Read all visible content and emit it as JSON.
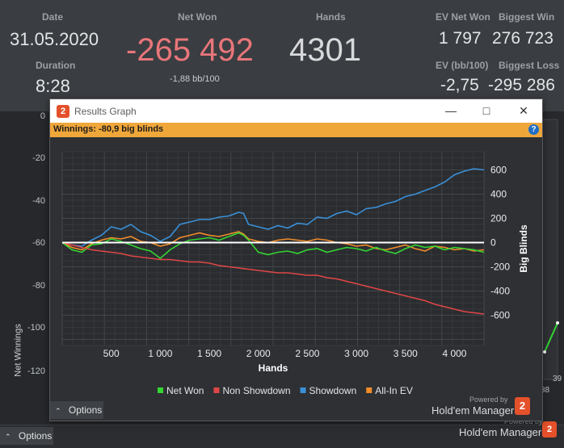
{
  "stats": {
    "date_label": "Date",
    "date_value": "31.05.2020",
    "duration_label": "Duration",
    "duration_value": "8:28",
    "net_won_label": "Net Won",
    "net_won_value": "-265 492",
    "net_won_bb": "-1,88 bb/100",
    "hands_label": "Hands",
    "hands_value": "4301",
    "ev_net_won_label": "EV Net Won",
    "ev_net_won_value": "1 797",
    "ev_bb_label": "EV (bb/100)",
    "ev_bb_value": "-2,75",
    "biggest_win_label": "Biggest Win",
    "biggest_win_value": "276 723",
    "biggest_loss_label": "Biggest Loss",
    "biggest_loss_value": "-295 286"
  },
  "background_chart": {
    "ylabel": "Net Winnings",
    "yticks": [
      "0",
      "-20",
      "-40",
      "-60",
      "-80",
      "-100",
      "-120"
    ],
    "xticks": [
      "38",
      "39"
    ]
  },
  "bottom": {
    "options_label": "Options",
    "powered_by": "Powered by",
    "brand": "Hold'em Manager",
    "logo": "2"
  },
  "window": {
    "title": "Results Graph",
    "logo": "2",
    "banner": "Winnings: -80,9 big blinds",
    "help": "?",
    "options_label": "Options",
    "powered_by": "Powered by",
    "brand": "Hold'em Manager",
    "legend": [
      {
        "name": "Net Won",
        "color": "#33d633"
      },
      {
        "name": "Non Showdown",
        "color": "#e04646"
      },
      {
        "name": "Showdown",
        "color": "#3a90d8"
      },
      {
        "name": "All-In EV",
        "color": "#f08c2a"
      }
    ]
  },
  "chart_data": {
    "type": "line",
    "xlabel": "Hands",
    "ylabel_right": "Big Blinds",
    "xlim": [
      0,
      4301
    ],
    "ylim": [
      -850,
      750
    ],
    "xticks": [
      500,
      1000,
      1500,
      2000,
      2500,
      3000,
      3500,
      4000
    ],
    "xtick_labels": [
      "500",
      "1 000",
      "1 500",
      "2 000",
      "2 500",
      "3 000",
      "3 500",
      "4 000"
    ],
    "yticks": [
      600,
      400,
      200,
      0,
      -200,
      -400,
      -600
    ],
    "ytick_labels": [
      "600",
      "400",
      "200",
      "0",
      "-200",
      "-400",
      "-600"
    ],
    "zero_line": true,
    "grid": true,
    "series": [
      {
        "name": "Showdown",
        "color": "#3a90d8",
        "x": [
          0,
          100,
          200,
          300,
          400,
          500,
          600,
          700,
          800,
          900,
          1000,
          1100,
          1200,
          1300,
          1400,
          1500,
          1600,
          1700,
          1800,
          1850,
          1900,
          2000,
          2100,
          2200,
          2300,
          2400,
          2500,
          2600,
          2700,
          2800,
          2900,
          3000,
          3100,
          3200,
          3300,
          3400,
          3500,
          3600,
          3700,
          3800,
          3900,
          4000,
          4100,
          4200,
          4301
        ],
        "y": [
          0,
          -20,
          -30,
          20,
          60,
          130,
          110,
          150,
          90,
          60,
          10,
          50,
          150,
          170,
          190,
          190,
          210,
          220,
          250,
          240,
          150,
          130,
          110,
          140,
          120,
          160,
          150,
          210,
          200,
          240,
          260,
          230,
          280,
          290,
          320,
          340,
          380,
          400,
          430,
          460,
          500,
          560,
          590,
          610,
          600
        ]
      },
      {
        "name": "All-In EV",
        "color": "#f08c2a",
        "x": [
          0,
          100,
          200,
          300,
          400,
          500,
          600,
          700,
          800,
          900,
          1000,
          1100,
          1200,
          1300,
          1400,
          1500,
          1600,
          1700,
          1800,
          1850,
          1900,
          2000,
          2100,
          2200,
          2300,
          2400,
          2500,
          2600,
          2700,
          2800,
          2900,
          3000,
          3100,
          3200,
          3300,
          3400,
          3500,
          3600,
          3700,
          3800,
          3900,
          4000,
          4100,
          4200,
          4301
        ],
        "y": [
          0,
          -40,
          -60,
          -10,
          20,
          40,
          30,
          50,
          10,
          0,
          -30,
          -10,
          40,
          60,
          80,
          60,
          50,
          70,
          90,
          70,
          30,
          10,
          0,
          20,
          30,
          20,
          10,
          30,
          20,
          0,
          -10,
          -30,
          -20,
          -50,
          -60,
          -40,
          -20,
          -50,
          -70,
          -30,
          -40,
          -60,
          -50,
          -70,
          -60
        ]
      },
      {
        "name": "Net Won",
        "color": "#33d633",
        "x": [
          0,
          100,
          200,
          300,
          400,
          500,
          600,
          700,
          800,
          900,
          1000,
          1100,
          1200,
          1300,
          1400,
          1500,
          1600,
          1700,
          1800,
          1850,
          1900,
          2000,
          2100,
          2200,
          2300,
          2400,
          2500,
          2600,
          2700,
          2800,
          2900,
          3000,
          3100,
          3200,
          3300,
          3400,
          3500,
          3600,
          3700,
          3800,
          3900,
          4000,
          4100,
          4200,
          4301
        ],
        "y": [
          0,
          -60,
          -80,
          -20,
          -10,
          30,
          10,
          -20,
          -50,
          -70,
          -130,
          -60,
          -10,
          20,
          30,
          40,
          20,
          50,
          80,
          60,
          20,
          -80,
          -100,
          -80,
          -70,
          -90,
          -60,
          -50,
          -80,
          -60,
          -40,
          -50,
          -70,
          -40,
          -70,
          -90,
          -50,
          -20,
          -40,
          -30,
          -60,
          -40,
          -50,
          -60,
          -80
        ]
      },
      {
        "name": "Non Showdown",
        "color": "#e04646",
        "x": [
          0,
          100,
          200,
          300,
          400,
          500,
          600,
          700,
          800,
          900,
          1000,
          1100,
          1200,
          1300,
          1400,
          1500,
          1600,
          1700,
          1800,
          1850,
          1900,
          2000,
          2100,
          2200,
          2300,
          2400,
          2500,
          2600,
          2700,
          2800,
          2900,
          3000,
          3100,
          3200,
          3300,
          3400,
          3500,
          3600,
          3700,
          3800,
          3900,
          4000,
          4100,
          4200,
          4301
        ],
        "y": [
          0,
          -20,
          -40,
          -60,
          -70,
          -80,
          -90,
          -110,
          -120,
          -130,
          -140,
          -140,
          -150,
          -160,
          -160,
          -170,
          -190,
          -200,
          -210,
          -215,
          -220,
          -230,
          -240,
          -250,
          -250,
          -260,
          -270,
          -270,
          -290,
          -300,
          -320,
          -340,
          -360,
          -380,
          -400,
          -420,
          -440,
          -460,
          -480,
          -510,
          -530,
          -550,
          -570,
          -580,
          -590
        ]
      }
    ]
  }
}
